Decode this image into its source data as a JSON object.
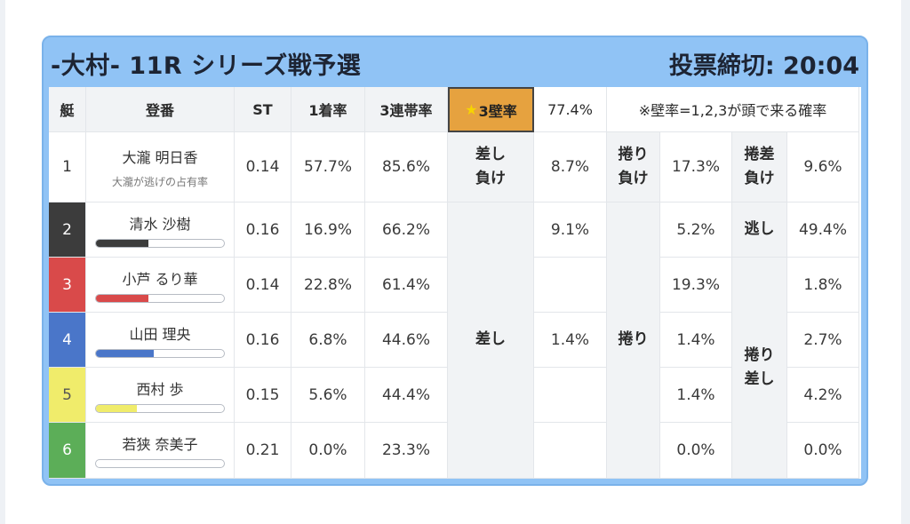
{
  "race": {
    "title": "-大村- 11R シリーズ戦予選",
    "deadline": "投票締切: 20:04"
  },
  "headers": {
    "lane": "艇",
    "racer": "登番",
    "st": "ST",
    "win": "1着率",
    "top3": "3連帯率",
    "kabe_star": "★",
    "kabe_label": "3壁率",
    "kabe_value": "77.4%",
    "note": "※壁率=1,2,3が頭で来る確率"
  },
  "rows": [
    {
      "lane": "1",
      "name": "大瀧 明日香",
      "note": "大瀧が逃げの占有率",
      "st": "0.14",
      "win": "57.7%",
      "top3": "85.6%"
    },
    {
      "lane": "2",
      "name": "清水 沙樹",
      "st": "0.16",
      "win": "16.9%",
      "top3": "66.2%",
      "bar": 0.41,
      "bar_color": "#3c3c3c"
    },
    {
      "lane": "3",
      "name": "小芦 るり華",
      "st": "0.14",
      "win": "22.8%",
      "top3": "61.4%",
      "bar": 0.41,
      "bar_color": "#d94a4a"
    },
    {
      "lane": "4",
      "name": "山田 理央",
      "st": "0.16",
      "win": "6.8%",
      "top3": "44.6%",
      "bar": 0.45,
      "bar_color": "#4a76c9"
    },
    {
      "lane": "5",
      "name": "西村 歩",
      "st": "0.15",
      "win": "5.6%",
      "top3": "44.4%",
      "bar": 0.32,
      "bar_color": "#f0ec6b"
    },
    {
      "lane": "6",
      "name": "若狭 奈美子",
      "st": "0.21",
      "win": "0.0%",
      "top3": "23.3%",
      "bar": 0.0,
      "bar_color": "#5cae58"
    }
  ],
  "kimarite": {
    "sashi_make": {
      "line1": "差し",
      "line2": "負け"
    },
    "makuri_make": {
      "line1": "捲り",
      "line2": "負け"
    },
    "makurisashi_make": {
      "line1": "捲差",
      "line2": "負け"
    },
    "sashi": "差し",
    "makuri": "捲り",
    "nige": "逃し",
    "makurisashi": {
      "line1": "捲り",
      "line2": "差し"
    }
  },
  "values": {
    "r1_sashi_make": "8.7%",
    "r1_makuri_make": "17.3%",
    "r1_makurisashi_make": "9.6%",
    "r2_sashi": "9.1%",
    "r2_makuri": "5.2%",
    "r2_nige": "49.4%",
    "r3_makuri": "19.3%",
    "r3_makurisashi": "1.8%",
    "r4_sashi": "1.4%",
    "r4_makuri": "1.4%",
    "r4_makurisashi": "2.7%",
    "r5_makuri": "1.4%",
    "r5_makurisashi": "4.2%",
    "r6_makuri": "0.0%",
    "r6_makurisashi": "0.0%"
  }
}
